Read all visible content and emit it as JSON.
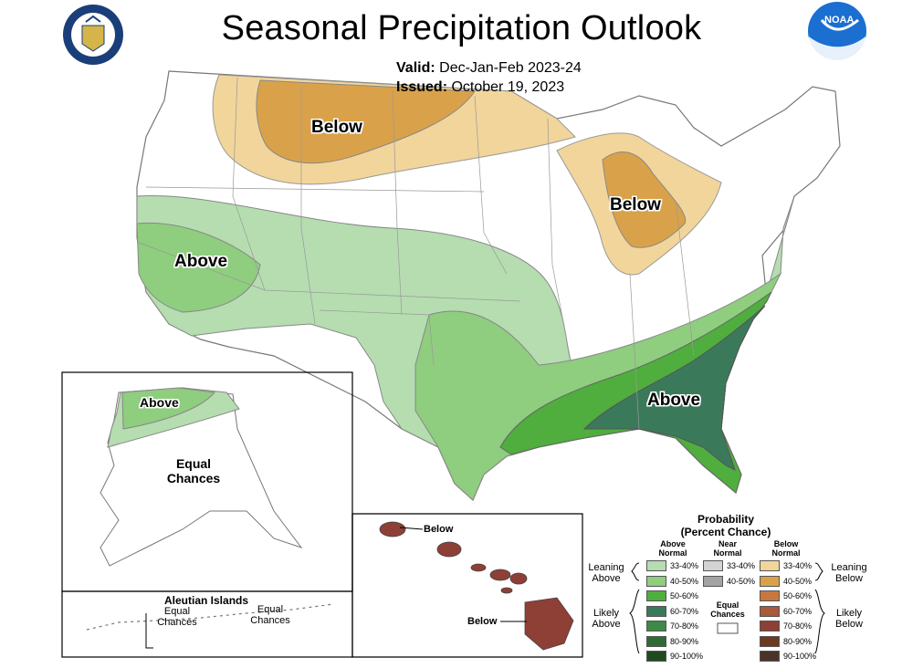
{
  "title": "Seasonal Precipitation Outlook",
  "valid_label": "Valid:",
  "valid_value": "Dec-Jan-Feb 2023-24",
  "issued_label": "Issued:",
  "issued_value": "October 19, 2023",
  "logos": {
    "left": "department-of-commerce-seal",
    "right": "noaa-logo",
    "right_text": "NOAA"
  },
  "map_labels": {
    "north_below": "Below",
    "great_lakes_below": "Below",
    "west_above": "Above",
    "southeast_above": "Above",
    "alaska_above": "Above",
    "alaska_equal": "Equal Chances",
    "aleutian_title": "Aleutian Islands",
    "aleutian_equal_1": "Equal Chances",
    "aleutian_equal_2": "Equal Chances",
    "hawaii_below_1": "Below",
    "hawaii_below_2": "Below"
  },
  "legend": {
    "title": "Probability",
    "subtitle": "(Percent Chance)",
    "col_above": "Above Normal",
    "col_near": "Near Normal",
    "col_below": "Below Normal",
    "leaning_above": "Leaning Above",
    "likely_above": "Likely Above",
    "leaning_below": "Leaning Below",
    "likely_below": "Likely Below",
    "equal_chances": "Equal Chances",
    "above_rows": [
      {
        "label": "33-40%",
        "color": "#b5ddb0"
      },
      {
        "label": "40-50%",
        "color": "#8fcd7f"
      },
      {
        "label": "50-60%",
        "color": "#4fae3e"
      },
      {
        "label": "60-70%",
        "color": "#3a7a5a"
      },
      {
        "label": "70-80%",
        "color": "#3d8a47"
      },
      {
        "label": "80-90%",
        "color": "#2e6b35"
      },
      {
        "label": "90-100%",
        "color": "#1f4a20"
      }
    ],
    "near_rows": [
      {
        "label": "33-40%",
        "color": "#d3d3d3"
      },
      {
        "label": "40-50%",
        "color": "#a3a3a3"
      }
    ],
    "below_rows": [
      {
        "label": "33-40%",
        "color": "#f2d59b"
      },
      {
        "label": "40-50%",
        "color": "#d9a24a"
      },
      {
        "label": "50-60%",
        "color": "#c8783e"
      },
      {
        "label": "60-70%",
        "color": "#a85a3a"
      },
      {
        "label": "70-80%",
        "color": "#8e3f36"
      },
      {
        "label": "80-90%",
        "color": "#6b3a1e"
      },
      {
        "label": "90-100%",
        "color": "#4a3428"
      }
    ]
  },
  "colors": {
    "above_33": "#b5ddb0",
    "above_40": "#8fcd7f",
    "above_50": "#4fae3e",
    "above_60": "#3a7a5a",
    "below_33": "#f2d59b",
    "below_40": "#d9a24a",
    "hawaii_below": "#8e3f36"
  }
}
